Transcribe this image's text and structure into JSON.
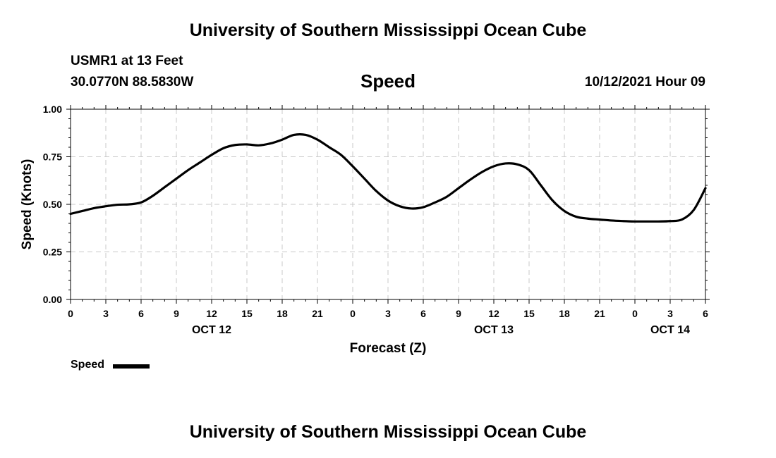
{
  "page": {
    "title_top": "University of Southern Mississippi Ocean Cube",
    "title_bottom": "University of Southern Mississippi Ocean Cube",
    "station": "USMR1 at 13 Feet",
    "coords": "30.0770N  88.5830W",
    "timestamp": "10/12/2021 Hour 09"
  },
  "chart_data": {
    "type": "line",
    "title": "Speed",
    "xlabel": "Forecast (Z)",
    "ylabel": "Speed (Knots)",
    "xlim": [
      0,
      54
    ],
    "ylim": [
      0,
      1.0
    ],
    "grid": true,
    "legend_position": "bottom-left",
    "x_ticks": [
      "0",
      "3",
      "6",
      "9",
      "12",
      "15",
      "18",
      "21",
      "0",
      "3",
      "6",
      "9",
      "12",
      "15",
      "18",
      "21",
      "0",
      "3",
      "6"
    ],
    "date_labels": [
      {
        "hour": 12,
        "label": "OCT 12"
      },
      {
        "hour": 36,
        "label": "OCT 13"
      },
      {
        "hour": 51,
        "label": "OCT 14"
      }
    ],
    "y_ticks": [
      "0.00",
      "0.25",
      "0.50",
      "0.75",
      "1.00"
    ],
    "series": [
      {
        "name": "Speed",
        "color": "#000000",
        "x": [
          0,
          1,
          2,
          3,
          4,
          5,
          6,
          7,
          8,
          9,
          10,
          11,
          12,
          13,
          14,
          15,
          16,
          17,
          18,
          19,
          20,
          21,
          22,
          23,
          24,
          25,
          26,
          27,
          28,
          29,
          30,
          31,
          32,
          33,
          34,
          35,
          36,
          37,
          38,
          39,
          40,
          41,
          42,
          43,
          44,
          45,
          46,
          47,
          48,
          49,
          50,
          51,
          52,
          53,
          54
        ],
        "values": [
          0.45,
          0.465,
          0.48,
          0.49,
          0.498,
          0.5,
          0.51,
          0.545,
          0.59,
          0.635,
          0.68,
          0.72,
          0.76,
          0.795,
          0.812,
          0.815,
          0.81,
          0.82,
          0.84,
          0.865,
          0.865,
          0.84,
          0.8,
          0.76,
          0.7,
          0.635,
          0.57,
          0.52,
          0.49,
          0.478,
          0.485,
          0.51,
          0.54,
          0.585,
          0.63,
          0.67,
          0.7,
          0.715,
          0.71,
          0.68,
          0.6,
          0.52,
          0.465,
          0.435,
          0.425,
          0.42,
          0.415,
          0.412,
          0.41,
          0.41,
          0.41,
          0.412,
          0.42,
          0.47,
          0.585
        ]
      }
    ]
  }
}
